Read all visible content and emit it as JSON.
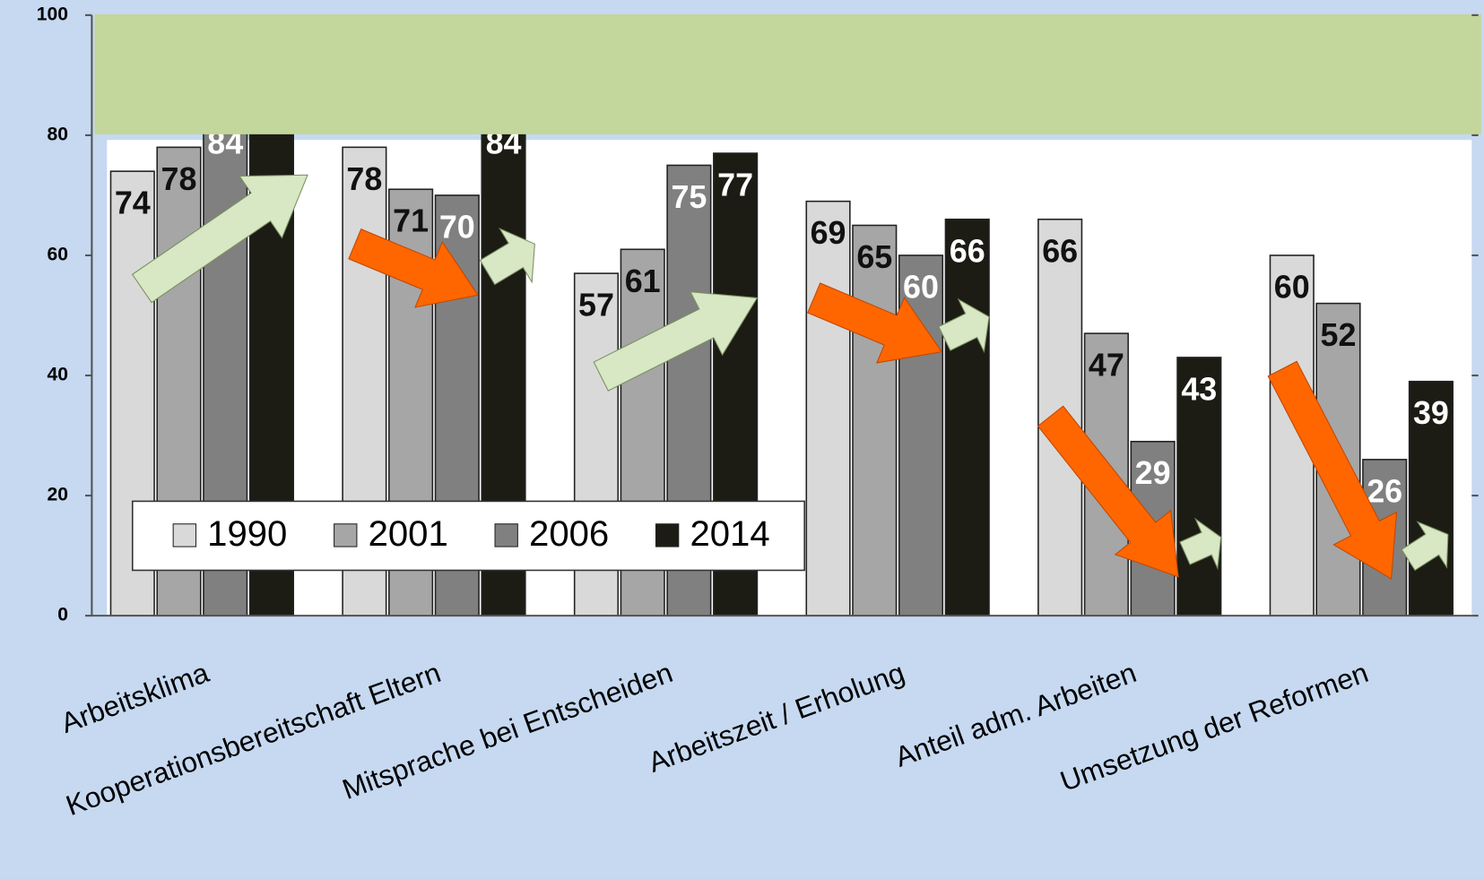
{
  "chart_data": {
    "type": "bar",
    "categories": [
      "Arbeitsklima",
      "Kooperationsbereitschaft Eltern",
      "Mitsprache bei Entscheiden",
      "Arbeitszeit / Erholung",
      "Anteil adm. Arbeiten",
      "Umsetzung der Reformen"
    ],
    "series": [
      {
        "name": "1990",
        "color": "#d9d9d9",
        "values": [
          74,
          78,
          57,
          69,
          66,
          60
        ]
      },
      {
        "name": "2001",
        "color": "#a6a6a6",
        "values": [
          78,
          71,
          61,
          65,
          47,
          52
        ]
      },
      {
        "name": "2006",
        "color": "#808080",
        "values": [
          84,
          70,
          75,
          60,
          29,
          26
        ]
      },
      {
        "name": "2014",
        "color": "#1c1c14",
        "values": [
          88,
          84,
          77,
          66,
          43,
          39
        ]
      }
    ],
    "ylim": [
      0,
      100
    ],
    "yticks": [
      0,
      20,
      40,
      60,
      80,
      100
    ]
  }
}
